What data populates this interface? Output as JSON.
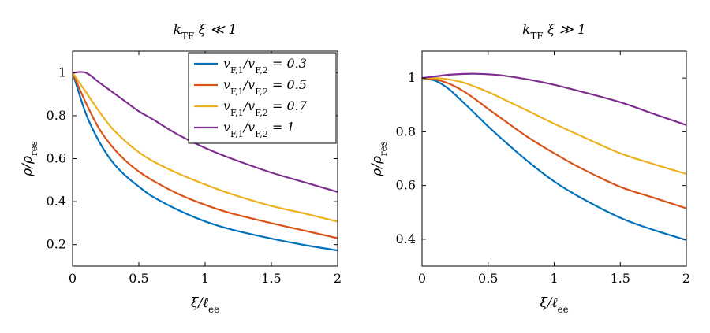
{
  "chart_data": [
    {
      "type": "line",
      "title": "k_TF ξ ≪ 1",
      "xlabel": "ξ/ℓ_ee",
      "ylabel": "ρ/ρ_res",
      "xlim": [
        0,
        2
      ],
      "ylim": [
        0.1,
        1.1
      ],
      "xticks": [
        0,
        0.5,
        1,
        1.5,
        2
      ],
      "xtick_labels": [
        "0",
        "0.5",
        "1",
        "1.5",
        "2"
      ],
      "yticks": [
        0.2,
        0.4,
        0.6,
        0.8,
        1
      ],
      "ytick_labels": [
        "0.2",
        "0.4",
        "0.6",
        "0.8",
        "1"
      ],
      "grid": false,
      "legend": "top-right",
      "x": [
        0,
        0.1,
        0.2,
        0.3,
        0.4,
        0.5,
        0.6,
        0.8,
        1.0,
        1.2,
        1.5,
        1.75,
        2.0
      ],
      "series": [
        {
          "name": "v_F,1/v_F,2 = 0.3",
          "color": "#0072bd",
          "values": [
            1.0,
            0.81,
            0.68,
            0.585,
            0.52,
            0.47,
            0.425,
            0.36,
            0.308,
            0.27,
            0.228,
            0.198,
            0.173
          ]
        },
        {
          "name": "v_F,1/v_F,2 = 0.5",
          "color": "#d95319",
          "values": [
            1.0,
            0.86,
            0.74,
            0.655,
            0.59,
            0.54,
            0.5,
            0.435,
            0.385,
            0.345,
            0.3,
            0.265,
            0.23
          ]
        },
        {
          "name": "v_F,1/v_F,2 = 0.7",
          "color": "#edb120",
          "values": [
            1.0,
            0.91,
            0.82,
            0.74,
            0.68,
            0.63,
            0.59,
            0.53,
            0.48,
            0.435,
            0.38,
            0.345,
            0.307
          ]
        },
        {
          "name": "v_F,1/v_F,2 = 1",
          "color": "#7e2f8e",
          "values": [
            1.0,
            1.0,
            0.955,
            0.91,
            0.865,
            0.82,
            0.785,
            0.71,
            0.65,
            0.6,
            0.535,
            0.49,
            0.445
          ]
        }
      ]
    },
    {
      "type": "line",
      "title": "k_TF ξ ≫ 1",
      "xlabel": "ξ/ℓ_ee",
      "ylabel": "ρ/ρ_res",
      "xlim": [
        0,
        2
      ],
      "ylim": [
        0.3,
        1.1
      ],
      "xticks": [
        0,
        0.5,
        1,
        1.5,
        2
      ],
      "xtick_labels": [
        "0",
        "0.5",
        "1",
        "1.5",
        "2"
      ],
      "yticks": [
        0.4,
        0.6,
        0.8,
        1
      ],
      "ytick_labels": [
        "0.4",
        "0.6",
        "0.8",
        "1"
      ],
      "grid": false,
      "x": [
        0,
        0.1,
        0.2,
        0.3,
        0.4,
        0.5,
        0.6,
        0.8,
        1.0,
        1.2,
        1.5,
        1.75,
        2.0
      ],
      "series": [
        {
          "color": "#0072bd",
          "values": [
            1.0,
            0.99,
            0.96,
            0.915,
            0.868,
            0.82,
            0.775,
            0.69,
            0.615,
            0.555,
            0.48,
            0.435,
            0.397
          ]
        },
        {
          "color": "#d95319",
          "values": [
            1.0,
            0.995,
            0.98,
            0.955,
            0.922,
            0.885,
            0.85,
            0.78,
            0.72,
            0.665,
            0.595,
            0.555,
            0.515
          ]
        },
        {
          "color": "#edb120",
          "values": [
            1.0,
            1.0,
            0.995,
            0.985,
            0.968,
            0.948,
            0.925,
            0.878,
            0.83,
            0.785,
            0.72,
            0.68,
            0.643
          ]
        },
        {
          "color": "#7e2f8e",
          "values": [
            1.0,
            1.006,
            1.012,
            1.015,
            1.016,
            1.014,
            1.01,
            0.995,
            0.975,
            0.95,
            0.91,
            0.867,
            0.825
          ]
        }
      ]
    }
  ]
}
